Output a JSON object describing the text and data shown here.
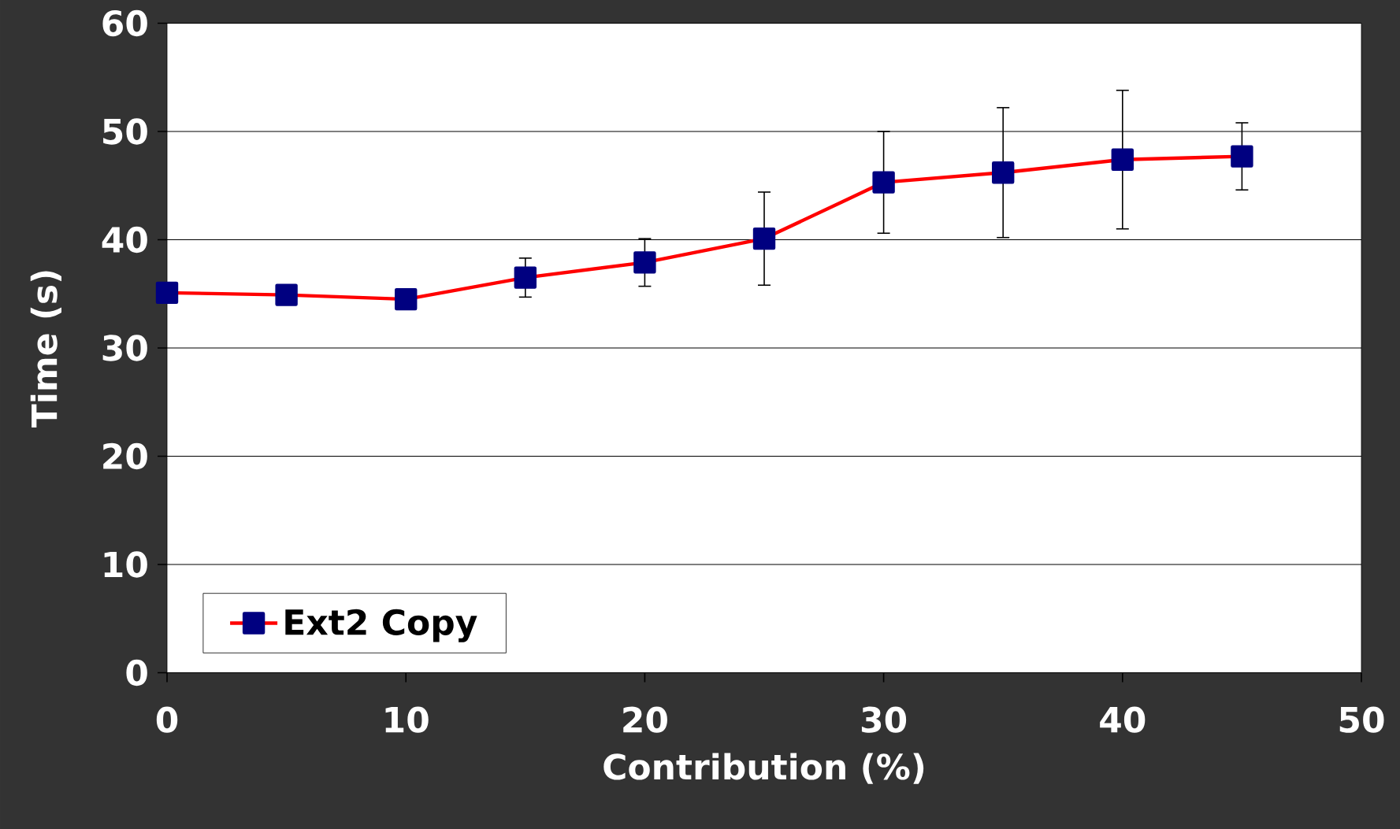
{
  "chart_data": {
    "type": "line",
    "xlabel": "Contribution (%)",
    "ylabel": "Time (s)",
    "x": [
      0,
      5,
      10,
      15,
      20,
      25,
      30,
      35,
      40,
      45
    ],
    "series": [
      {
        "name": "Ext2 Copy",
        "color": "#ff0000",
        "colors": [
          "#000080",
          "#000080",
          "#000080",
          "#000080",
          "#000080",
          "#000080",
          "#000080",
          "#000080",
          "#000080",
          "#000080"
        ],
        "values": [
          35.1,
          34.9,
          34.5,
          36.5,
          37.9,
          40.1,
          45.3,
          46.2,
          47.4,
          47.7
        ],
        "errors": [
          null,
          null,
          null,
          1.8,
          2.2,
          4.3,
          4.7,
          6.0,
          6.4,
          3.1
        ]
      }
    ],
    "xlim": [
      0,
      50
    ],
    "ylim": [
      0,
      60
    ],
    "xticks": [
      0,
      10,
      20,
      30,
      40,
      50
    ],
    "yticks": [
      0,
      10,
      20,
      30,
      40,
      50,
      60
    ],
    "grid": "y",
    "legend": "bottom left",
    "marker": "square",
    "line_style": "solid"
  }
}
